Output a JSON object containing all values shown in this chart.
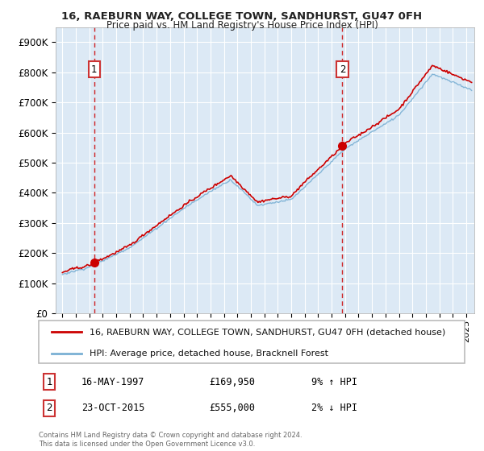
{
  "title1": "16, RAEBURN WAY, COLLEGE TOWN, SANDHURST, GU47 0FH",
  "title2": "Price paid vs. HM Land Registry's House Price Index (HPI)",
  "ylim": [
    0,
    950000
  ],
  "yticks": [
    0,
    100000,
    200000,
    300000,
    400000,
    500000,
    600000,
    700000,
    800000,
    900000
  ],
  "ytick_labels": [
    "£0",
    "£100K",
    "£200K",
    "£300K",
    "£400K",
    "£500K",
    "£600K",
    "£700K",
    "£800K",
    "£900K"
  ],
  "sale1_year": 1997.37,
  "sale1_price": 169950,
  "sale2_year": 2015.8,
  "sale2_price": 555000,
  "legend_line1": "16, RAEBURN WAY, COLLEGE TOWN, SANDHURST, GU47 0FH (detached house)",
  "legend_line2": "HPI: Average price, detached house, Bracknell Forest",
  "annotation1_date": "16-MAY-1997",
  "annotation1_price": "£169,950",
  "annotation1_hpi": "9% ↑ HPI",
  "annotation2_date": "23-OCT-2015",
  "annotation2_price": "£555,000",
  "annotation2_hpi": "2% ↓ HPI",
  "footnote": "Contains HM Land Registry data © Crown copyright and database right 2024.\nThis data is licensed under the Open Government Licence v3.0.",
  "bg_color": "#dce9f5",
  "line_red": "#cc0000",
  "line_blue": "#7ab0d4",
  "grid_color": "#ffffff",
  "marker_color": "#cc0000",
  "box_edge_color": "#cc3333"
}
